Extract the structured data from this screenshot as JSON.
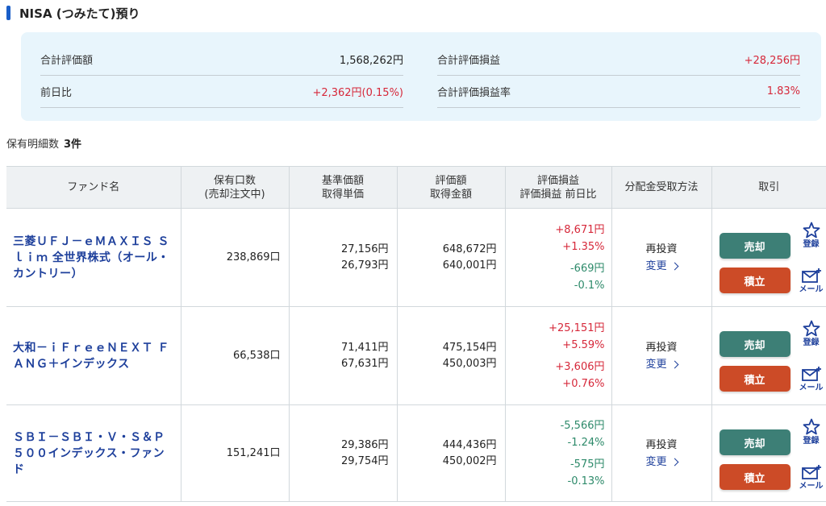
{
  "section": {
    "title": "NISA (つみたて)預り"
  },
  "summary": {
    "total_value_label": "合計評価額",
    "total_value": "1,568,262円",
    "total_pl_label": "合計評価損益",
    "total_pl": "+28,256円",
    "day_change_label": "前日比",
    "day_change": "+2,362円(0.15%)",
    "total_pl_rate_label": "合計評価損益率",
    "total_pl_rate": "1.83%"
  },
  "holdings_count": {
    "label": "保有明細数",
    "value": "3件"
  },
  "table": {
    "headers": {
      "fund": "ファンド名",
      "units_1": "保有口数",
      "units_2": "(売却注文中)",
      "price_1": "基準価額",
      "price_2": "取得単価",
      "value_1": "評価額",
      "value_2": "取得金額",
      "pl_1": "評価損益",
      "pl_2": "評価損益 前日比",
      "dist": "分配金受取方法",
      "trade": "取引"
    },
    "rows": [
      {
        "name": "三菱ＵＦＪ－ｅＭＡＸＩＳ Ｓｌｉｍ 全世界株式（オール・カントリー）",
        "units": "238,869口",
        "nav": "27,156円",
        "cost_unit": "26,793円",
        "value": "648,672円",
        "cost": "640,001円",
        "pl": "+8,671円",
        "pl_pct": "+1.35%",
        "day": "-669円",
        "day_pct": "-0.1%",
        "pl_sign": "pos",
        "day_sign": "neg",
        "dist": "再投資",
        "change": "変更"
      },
      {
        "name": "大和－ｉＦｒｅｅＮＥＸＴ ＦＡＮＧ＋インデックス",
        "units": "66,538口",
        "nav": "71,411円",
        "cost_unit": "67,631円",
        "value": "475,154円",
        "cost": "450,003円",
        "pl": "+25,151円",
        "pl_pct": "+5.59%",
        "day": "+3,606円",
        "day_pct": "+0.76%",
        "pl_sign": "pos",
        "day_sign": "pos",
        "dist": "再投資",
        "change": "変更"
      },
      {
        "name": "ＳＢＩ－ＳＢＩ・Ｖ・Ｓ＆Ｐ５００インデックス・ファンド",
        "units": "151,241口",
        "nav": "29,386円",
        "cost_unit": "29,754円",
        "value": "444,436円",
        "cost": "450,002円",
        "pl": "-5,566円",
        "pl_pct": "-1.24%",
        "day": "-575円",
        "day_pct": "-0.13%",
        "pl_sign": "neg",
        "day_sign": "neg",
        "dist": "再投資",
        "change": "変更"
      }
    ],
    "actions": {
      "sell": "売却",
      "accumulate": "積立",
      "register": "登録",
      "mail": "メール"
    }
  },
  "colors": {
    "positive": "#d6283a",
    "negative": "#2d8a6a",
    "sell_button": "#3d7f76",
    "accumulate_button": "#cc4b27",
    "link": "#1d3f9b",
    "summary_bg": "#e8f5fc"
  },
  "icons": [
    "star-icon",
    "mail-icon",
    "chevron-right-icon"
  ]
}
